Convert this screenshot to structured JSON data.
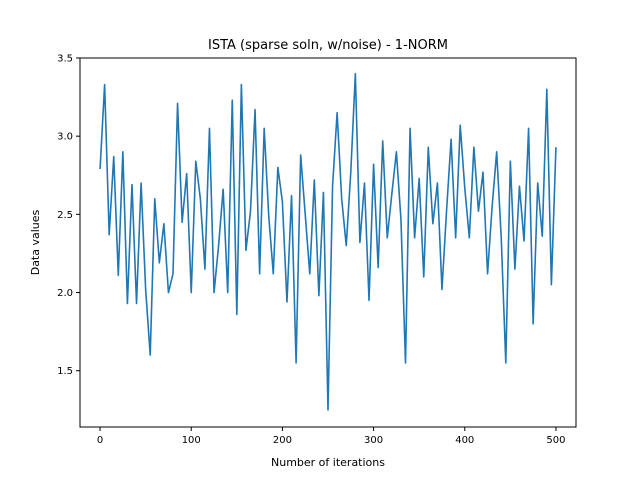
{
  "chart_data": {
    "type": "line",
    "title": "ISTA (sparse soln, w/noise) - 1-NORM",
    "xlabel": "Number of iterations",
    "ylabel": "Data values",
    "xlim": [
      -22,
      522
    ],
    "ylim": [
      1.14,
      3.5
    ],
    "xticks": [
      0,
      100,
      200,
      300,
      400,
      500
    ],
    "yticks": [
      1.5,
      2.0,
      2.5,
      3.0,
      3.5
    ],
    "ytick_labels": [
      "1.5",
      "2.0",
      "2.5",
      "3.0",
      "3.5"
    ],
    "grid": false,
    "line_color": "#1f77b4",
    "series": [
      {
        "x": [
          0,
          5,
          10,
          15,
          20,
          25,
          30,
          35,
          40,
          45,
          50,
          55,
          60,
          65,
          70,
          75,
          80,
          85,
          90,
          95,
          100,
          105,
          110,
          115,
          120,
          125,
          130,
          135,
          140,
          145,
          150,
          155,
          160,
          165,
          170,
          175,
          180,
          185,
          190,
          195,
          200,
          205,
          210,
          215,
          220,
          225,
          230,
          235,
          240,
          245,
          250,
          255,
          260,
          265,
          270,
          275,
          280,
          285,
          290,
          295,
          300,
          305,
          310,
          315,
          320,
          325,
          330,
          335,
          340,
          345,
          350,
          355,
          360,
          365,
          370,
          375,
          380,
          385,
          390,
          395,
          400,
          405,
          410,
          415,
          420,
          425,
          430,
          435,
          440,
          445,
          450,
          455,
          460,
          465,
          470,
          475,
          480,
          485,
          490,
          495,
          500
        ],
        "values": [
          2.79,
          3.33,
          2.37,
          2.87,
          2.11,
          2.9,
          1.93,
          2.69,
          1.93,
          2.7,
          2.02,
          1.6,
          2.6,
          2.19,
          2.44,
          2.0,
          2.12,
          3.21,
          2.45,
          2.76,
          2.0,
          2.84,
          2.6,
          2.15,
          3.05,
          2.0,
          2.3,
          2.66,
          2.0,
          3.23,
          1.86,
          3.33,
          2.27,
          2.52,
          3.17,
          2.12,
          3.05,
          2.49,
          2.12,
          2.8,
          2.58,
          1.94,
          2.62,
          1.55,
          2.88,
          2.5,
          2.12,
          2.72,
          1.98,
          2.64,
          1.25,
          2.68,
          3.15,
          2.6,
          2.3,
          2.77,
          3.4,
          2.32,
          2.7,
          1.95,
          2.82,
          2.16,
          2.97,
          2.35,
          2.63,
          2.9,
          2.47,
          1.55,
          3.05,
          2.35,
          2.73,
          2.1,
          2.93,
          2.44,
          2.7,
          2.02,
          2.52,
          2.98,
          2.35,
          3.07,
          2.67,
          2.35,
          2.93,
          2.52,
          2.77,
          2.12,
          2.55,
          2.9,
          2.35,
          1.55,
          2.84,
          2.15,
          2.68,
          2.33,
          3.05,
          1.8,
          2.7,
          2.36,
          3.3,
          2.05,
          2.93
        ]
      }
    ]
  }
}
